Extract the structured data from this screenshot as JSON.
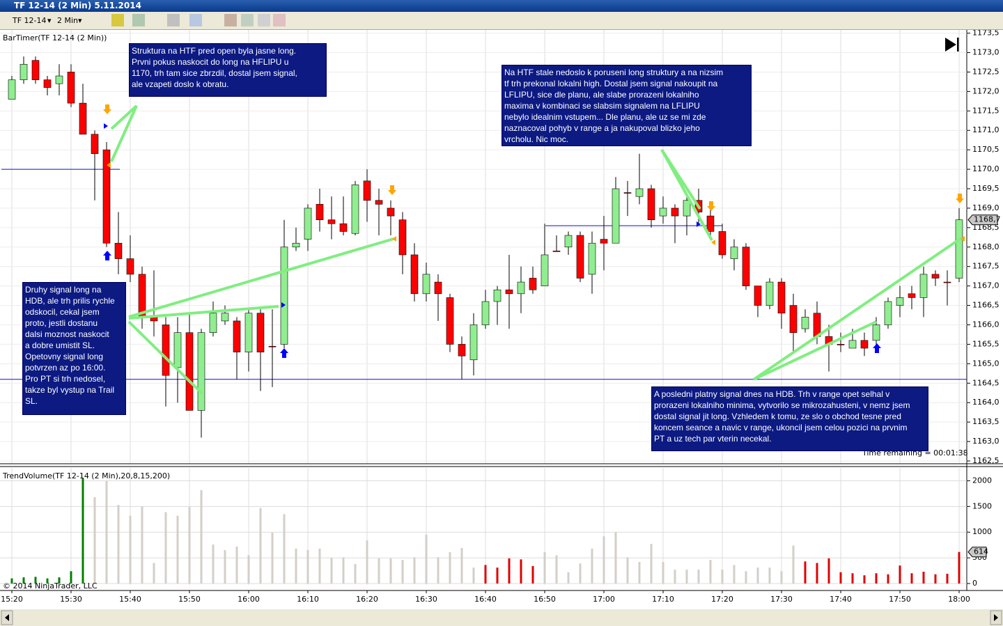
{
  "window": {
    "title": "TF 12-14 (2 Min)  5.11.2014",
    "instrument": "TF 12-14",
    "interval": "2 Min"
  },
  "chart_data": [
    {
      "type": "candlestick",
      "indicator_label": "BarTimer(TF 12-14 (2 Min))",
      "timer_text": "Time remaining = 00:01:38",
      "categories": [
        "15:20",
        null,
        null,
        null,
        null,
        "15:30",
        null,
        null,
        null,
        null,
        "15:40",
        null,
        null,
        null,
        null,
        "15:50",
        null,
        null,
        null,
        null,
        "16:00",
        null,
        null,
        null,
        null,
        "16:10",
        null,
        null,
        null,
        null,
        "16:20",
        null,
        null,
        null,
        null,
        "16:30",
        null,
        null,
        null,
        null,
        "16:40",
        null,
        null,
        null,
        null,
        "16:50",
        null,
        null,
        null,
        null,
        "17:00",
        null,
        null,
        null,
        null,
        "17:10",
        null,
        null,
        null,
        null,
        "17:20",
        null,
        null,
        null,
        null,
        "17:30",
        null,
        null,
        null,
        null,
        "17:40",
        null,
        null,
        null,
        null,
        "17:50",
        null,
        null,
        null,
        null,
        "18:00"
      ],
      "open": [
        1171.8,
        1172.3,
        1172.8,
        1172.3,
        1172.2,
        1172.5,
        1171.7,
        1170.9,
        1170.5,
        1168.1,
        1167.7,
        1167.3,
        1166.2,
        1166.0,
        1164.9,
        1165.8,
        1163.8,
        1165.8,
        1166.1,
        1166.1,
        1165.3,
        1166.3,
        1165.45,
        1165.5,
        1168.0,
        1168.2,
        1169.1,
        1168.7,
        1168.6,
        1168.35,
        1169.7,
        1169.2,
        1169.0,
        1168.7,
        1167.8,
        1166.8,
        1167.1,
        1166.7,
        1165.5,
        1165.1,
        1166.0,
        1166.6,
        1166.9,
        1166.8,
        1167.2,
        1167.0,
        1167.9,
        1168.0,
        1168.3,
        1167.3,
        1168.2,
        1168.1,
        1169.4,
        1169.3,
        1169.5,
        1168.8,
        1169.0,
        1168.8,
        1169.2,
        1168.8,
        1168.4,
        1167.7,
        1168.0,
        1167.0,
        1166.5,
        1167.1,
        1166.5,
        1165.9,
        1166.3,
        1165.7,
        1165.5,
        1165.4,
        1165.6,
        1165.6,
        1166.0,
        1166.5,
        1166.8,
        1166.7,
        1167.3,
        1167.1,
        1167.2
      ],
      "high": [
        1172.4,
        1172.9,
        1172.9,
        1172.4,
        1172.7,
        1172.7,
        1172.2,
        1171.0,
        1170.7,
        1168.9,
        1168.3,
        1167.5,
        1167.4,
        1166.2,
        1166.2,
        1166.3,
        1165.9,
        1166.6,
        1166.5,
        1166.2,
        1166.4,
        1166.4,
        1166.4,
        1168.7,
        1168.5,
        1169.1,
        1169.5,
        1169.3,
        1169.3,
        1169.7,
        1170.0,
        1169.5,
        1169.2,
        1168.9,
        1168.1,
        1167.6,
        1167.3,
        1166.8,
        1165.7,
        1166.3,
        1166.9,
        1167.0,
        1167.8,
        1167.5,
        1167.5,
        1168.6,
        1168.3,
        1168.4,
        1168.4,
        1168.4,
        1168.8,
        1169.8,
        1169.7,
        1170.4,
        1169.6,
        1169.3,
        1169.1,
        1169.3,
        1169.5,
        1169.0,
        1168.6,
        1168.2,
        1168.1,
        1167.0,
        1167.2,
        1167.2,
        1166.8,
        1166.4,
        1166.6,
        1166.0,
        1165.8,
        1165.9,
        1165.8,
        1166.2,
        1166.7,
        1167.0,
        1167.0,
        1167.5,
        1167.4,
        1167.4,
        1169.0
      ],
      "low": [
        1171.8,
        1172.2,
        1172.2,
        1171.9,
        1171.9,
        1171.6,
        1170.9,
        1169.2,
        1168.0,
        1167.3,
        1167.1,
        1165.9,
        1165.7,
        1163.9,
        1164.0,
        1163.8,
        1163.1,
        1165.7,
        1166.0,
        1164.6,
        1164.8,
        1164.3,
        1164.4,
        1165.4,
        1167.9,
        1167.9,
        1168.4,
        1168.2,
        1168.3,
        1168.3,
        1168.65,
        1168.3,
        1168.3,
        1167.3,
        1166.6,
        1166.6,
        1166.1,
        1165.3,
        1164.6,
        1164.7,
        1165.9,
        1166.0,
        1165.9,
        1166.3,
        1166.8,
        1167.0,
        1167.9,
        1167.8,
        1167.1,
        1166.8,
        1167.4,
        1168.1,
        1168.8,
        1169.1,
        1168.5,
        1168.6,
        1168.1,
        1168.3,
        1168.6,
        1168.3,
        1167.7,
        1167.4,
        1166.9,
        1166.2,
        1166.4,
        1165.9,
        1165.3,
        1165.8,
        1165.5,
        1164.8,
        1165.3,
        1165.4,
        1165.2,
        1165.5,
        1165.9,
        1166.2,
        1166.4,
        1166.2,
        1167.0,
        1166.5,
        1167.1
      ],
      "close": [
        1172.3,
        1172.7,
        1172.3,
        1172.1,
        1172.4,
        1171.7,
        1170.9,
        1170.4,
        1168.1,
        1167.7,
        1167.3,
        1166.2,
        1166.1,
        1164.7,
        1165.8,
        1163.8,
        1165.8,
        1166.3,
        1166.3,
        1165.3,
        1166.3,
        1165.3,
        1165.45,
        1168.0,
        1168.1,
        1169.0,
        1168.7,
        1168.6,
        1168.4,
        1169.6,
        1169.2,
        1169.1,
        1168.8,
        1167.8,
        1166.8,
        1167.3,
        1166.8,
        1165.5,
        1165.2,
        1166.0,
        1166.6,
        1166.9,
        1166.8,
        1167.1,
        1166.9,
        1167.8,
        1167.9,
        1168.3,
        1167.2,
        1168.1,
        1168.1,
        1169.5,
        1169.4,
        1169.5,
        1168.7,
        1169.0,
        1168.8,
        1169.2,
        1168.9,
        1168.4,
        1167.8,
        1168.0,
        1167.0,
        1166.5,
        1167.1,
        1166.3,
        1165.8,
        1166.2,
        1165.7,
        1165.5,
        1165.5,
        1165.6,
        1165.4,
        1166.0,
        1166.6,
        1166.7,
        1166.7,
        1167.3,
        1167.2,
        1167.1,
        1168.7
      ],
      "up_color": "#90ee90",
      "down_color": "#ff0000",
      "ylim": [
        1162.5,
        1173.6
      ],
      "yticks": [
        {
          "value": 1162.5,
          "label": "1162,5"
        },
        {
          "value": 1163,
          "label": "1163,0"
        },
        {
          "value": 1163.5,
          "label": "1163,5"
        },
        {
          "value": 1164,
          "label": "1164,0"
        },
        {
          "value": 1164.5,
          "label": "1164,5"
        },
        {
          "value": 1165,
          "label": "1165,0"
        },
        {
          "value": 1165.5,
          "label": "1165,5"
        },
        {
          "value": 1166,
          "label": "1166,0"
        },
        {
          "value": 1166.5,
          "label": "1166,5"
        },
        {
          "value": 1167,
          "label": "1167,0"
        },
        {
          "value": 1167.5,
          "label": "1167,5"
        },
        {
          "value": 1168,
          "label": "1168,0"
        },
        {
          "value": 1168.5,
          "label": "1168,5"
        },
        {
          "value": 1169,
          "label": "1169,0"
        },
        {
          "value": 1169.5,
          "label": "1169,5"
        },
        {
          "value": 1170,
          "label": "1170,0"
        },
        {
          "value": 1170.5,
          "label": "1170,5"
        },
        {
          "value": 1171,
          "label": "1171,0"
        },
        {
          "value": 1171.5,
          "label": "1171,5"
        },
        {
          "value": 1172,
          "label": "1172,0"
        },
        {
          "value": 1172.5,
          "label": "1172,5"
        },
        {
          "value": 1173,
          "label": "1173,0"
        },
        {
          "value": 1173.5,
          "label": "1173,5"
        }
      ],
      "hlines": [
        1170.0,
        1168.55,
        1164.6
      ],
      "last_price": {
        "value": 1168.7,
        "label": "1168,7"
      },
      "grid": true,
      "annotations": [
        {
          "lines": [
            "Struktura na HTF pred open byla jasne long.",
            "Prvni pokus naskocit do long na HFLIPU u",
            "1170, trh tam sice zbrzdil, dostal jsem signal,",
            "ale vzapeti doslo k obratu."
          ]
        },
        {
          "lines": [
            "Na HTF stale nedoslo k poruseni long struktury a na nizsim",
            "tf trh prekonal lokalni high. Dostal jsem signal nakoupit na",
            "LFLIPU, sice dle planu, ale slabe prorazeni lokalniho",
            "maxima v kombinaci se slabsim signalem na LFLIPU",
            "nebylo idealnim vstupem... Dle planu, ale uz se mi zde",
            "naznacoval pohyb v range a ja nakupoval blizko jeho",
            "vrcholu. Nic moc."
          ]
        },
        {
          "lines": [
            "Druhy signal long na",
            "HDB, ale trh prilis rychle",
            "odskocil, cekal jsem",
            "proto, jestli dostanu",
            "dalsi moznost naskocit",
            "a dobre umistit SL.",
            "Opetovny signal long",
            "potvrzen az po 16:00.",
            "Pro PT si trh nedosel,",
            "takze byl vystup na Trail",
            "SL."
          ]
        },
        {
          "lines": [
            "A posledni platny signal dnes na HDB. Trh v range opet selhal v",
            "prorazeni lokalniho minima, vytvorilo se mikrozahusteni, v nemz jsem",
            "dostal signal jit long. Vzhledem k tomu, ze slo o obchod tesne pred",
            "koncem seance a navic v range, ukoncil jsem celou pozici na prvnim",
            "PT a uz tech par vterin necekal."
          ]
        }
      ]
    },
    {
      "type": "bar",
      "indicator_label": "TrendVolume(TF 12-14 (2 Min),20,8,15,200)",
      "copyright": "© 2014 NinjaTrader, LLC",
      "values": [
        100,
        120,
        130,
        100,
        120,
        240,
        2050,
        1680,
        2000,
        1530,
        1320,
        1500,
        400,
        1390,
        1320,
        1490,
        1820,
        760,
        650,
        720,
        550,
        1470,
        990,
        1350,
        680,
        650,
        680,
        500,
        510,
        380,
        840,
        490,
        490,
        460,
        510,
        950,
        510,
        610,
        690,
        310,
        360,
        310,
        490,
        470,
        340,
        610,
        550,
        220,
        390,
        680,
        920,
        1000,
        510,
        420,
        770,
        420,
        270,
        270,
        270,
        460,
        270,
        360,
        240,
        310,
        310,
        240,
        740,
        430,
        400,
        490,
        220,
        200,
        160,
        200,
        180,
        350,
        200,
        230,
        180,
        190,
        614
      ],
      "colors": [
        "#008000",
        "#008000",
        "#008000",
        "#008000",
        "#008000",
        "#008000",
        "#008000",
        "#d3cfc8",
        "#d3cfc8",
        "#d3cfc8",
        "#d3cfc8",
        "#d3cfc8",
        "#d3cfc8",
        "#d3cfc8",
        "#d3cfc8",
        "#d3cfc8",
        "#d3cfc8",
        "#d3cfc8",
        "#d3cfc8",
        "#d3cfc8",
        "#d3cfc8",
        "#d3cfc8",
        "#d3cfc8",
        "#d3cfc8",
        "#d3cfc8",
        "#d3cfc8",
        "#d3cfc8",
        "#d3cfc8",
        "#d3cfc8",
        "#d3cfc8",
        "#d3cfc8",
        "#d3cfc8",
        "#d3cfc8",
        "#d3cfc8",
        "#d3cfc8",
        "#d3cfc8",
        "#d3cfc8",
        "#d3cfc8",
        "#d3cfc8",
        "#d3cfc8",
        "#e00000",
        "#e00000",
        "#e00000",
        "#e00000",
        "#e00000",
        "#d3cfc8",
        "#d3cfc8",
        "#d3cfc8",
        "#d3cfc8",
        "#d3cfc8",
        "#d3cfc8",
        "#d3cfc8",
        "#d3cfc8",
        "#d3cfc8",
        "#d3cfc8",
        "#d3cfc8",
        "#d3cfc8",
        "#d3cfc8",
        "#d3cfc8",
        "#d3cfc8",
        "#d3cfc8",
        "#d3cfc8",
        "#d3cfc8",
        "#d3cfc8",
        "#d3cfc8",
        "#d3cfc8",
        "#d3cfc8",
        "#e00000",
        "#e00000",
        "#e00000",
        "#e00000",
        "#e00000",
        "#e00000",
        "#e00000",
        "#e00000",
        "#e00000",
        "#e00000",
        "#e00000",
        "#e00000",
        "#e00000",
        "#e00000"
      ],
      "ylim": [
        0,
        2250
      ],
      "yticks": [
        0,
        500,
        1000,
        1500,
        2000
      ],
      "last_value": 614,
      "grid": true
    }
  ]
}
